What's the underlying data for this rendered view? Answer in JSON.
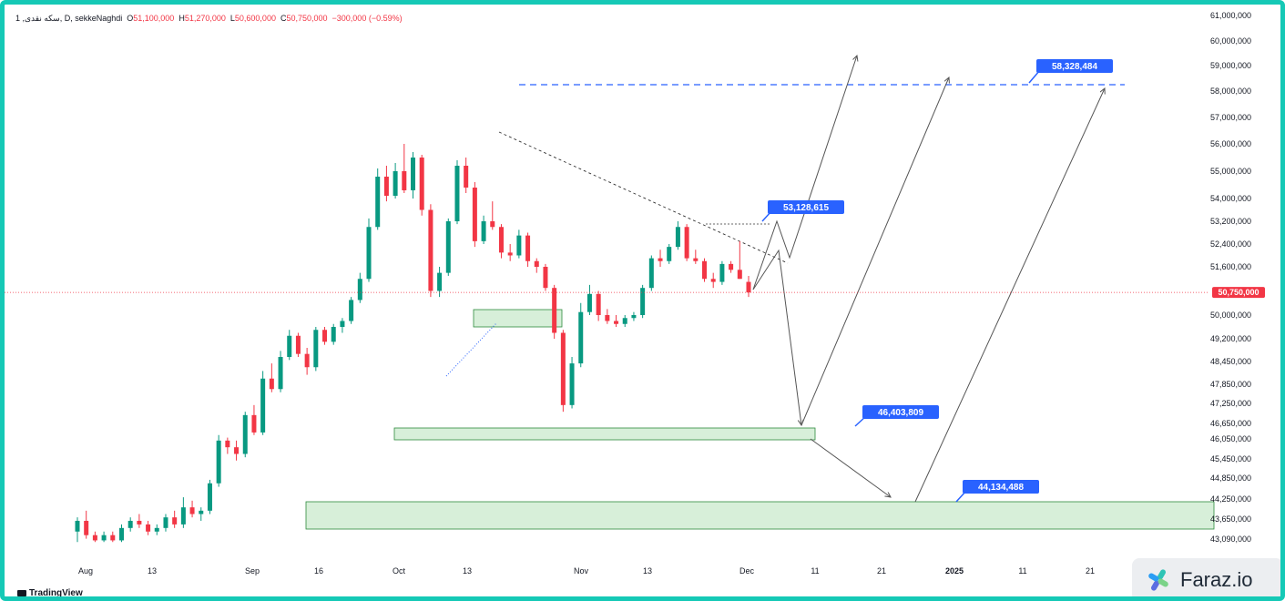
{
  "header": {
    "symbol": "1 ,سکه نقدی, D, sekkeNaghdi",
    "o_label": "O",
    "o": "51,100,000",
    "h_label": "H",
    "h": "51,270,000",
    "l_label": "L",
    "l": "50,600,000",
    "c_label": "C",
    "c": "50,750,000",
    "change": "−300,000 (−0.59%)"
  },
  "branding": {
    "tradingview": "TradingView",
    "faraz": "Faraz.io"
  },
  "colors": {
    "up": "#089981",
    "down": "#f23645",
    "label_bg": "#2962ff",
    "zone_fill": "#d7efd9",
    "zone_stroke": "#2e8b3d",
    "frame": "#15c9b6"
  },
  "chart_data": {
    "type": "candlestick",
    "y_ticks": [
      "61,000,000",
      "60,000,000",
      "59,000,000",
      "58,000,000",
      "57,000,000",
      "56,000,000",
      "55,000,000",
      "54,000,000",
      "53,200,000",
      "52,400,000",
      "51,600,000",
      "50,000,000",
      "49,200,000",
      "48,450,000",
      "47,850,000",
      "47,250,000",
      "46,650,000",
      "46,050,000",
      "45,450,000",
      "44,850,000",
      "44,250,000",
      "43,650,000",
      "43,090,000"
    ],
    "x_ticks": [
      "Aug",
      "13",
      "Sep",
      "16",
      "Oct",
      "13",
      "Nov",
      "13",
      "Dec",
      "11",
      "21",
      "2025",
      "11",
      "21"
    ],
    "last_price": "50,750,000",
    "price_labels": [
      "58,328,484",
      "53,128,615",
      "46,403,809",
      "44,134,488"
    ],
    "ohlc_approx": [
      [
        43.3,
        43.7,
        43.0,
        43.6
      ],
      [
        43.6,
        43.9,
        43.1,
        43.2
      ],
      [
        43.2,
        43.3,
        43.0,
        43.05
      ],
      [
        43.05,
        43.3,
        43.0,
        43.2
      ],
      [
        43.2,
        43.3,
        43.0,
        43.05
      ],
      [
        43.05,
        43.5,
        43.0,
        43.4
      ],
      [
        43.4,
        43.7,
        43.3,
        43.6
      ],
      [
        43.6,
        43.8,
        43.4,
        43.5
      ],
      [
        43.5,
        43.6,
        43.2,
        43.3
      ],
      [
        43.3,
        43.5,
        43.2,
        43.4
      ],
      [
        43.4,
        43.8,
        43.3,
        43.7
      ],
      [
        43.7,
        43.9,
        43.4,
        43.5
      ],
      [
        43.5,
        44.3,
        43.4,
        44.0
      ],
      [
        44.0,
        44.2,
        43.7,
        43.8
      ],
      [
        43.8,
        44.0,
        43.6,
        43.9
      ],
      [
        43.9,
        44.8,
        43.8,
        44.7
      ],
      [
        44.7,
        46.2,
        44.6,
        46.0
      ],
      [
        46.0,
        46.1,
        45.6,
        45.8
      ],
      [
        45.8,
        46.0,
        45.4,
        45.6
      ],
      [
        45.6,
        47.0,
        45.5,
        46.9
      ],
      [
        46.9,
        47.2,
        46.2,
        46.3
      ],
      [
        46.3,
        48.2,
        46.2,
        48.0
      ],
      [
        48.0,
        48.4,
        47.6,
        47.7
      ],
      [
        47.7,
        48.8,
        47.6,
        48.6
      ],
      [
        48.6,
        49.5,
        48.5,
        49.3
      ],
      [
        49.3,
        49.4,
        48.6,
        48.7
      ],
      [
        48.7,
        48.9,
        48.1,
        48.3
      ],
      [
        48.3,
        49.6,
        48.2,
        49.5
      ],
      [
        49.5,
        49.6,
        49.0,
        49.1
      ],
      [
        49.1,
        49.7,
        49.0,
        49.6
      ],
      [
        49.6,
        49.9,
        49.4,
        49.8
      ],
      [
        49.8,
        50.6,
        49.7,
        50.5
      ],
      [
        50.5,
        51.4,
        50.4,
        51.2
      ],
      [
        51.2,
        53.3,
        51.1,
        53.0
      ],
      [
        53.0,
        55.1,
        52.9,
        54.8
      ],
      [
        54.8,
        55.2,
        53.9,
        54.1
      ],
      [
        54.1,
        55.3,
        54.0,
        55.0
      ],
      [
        55.0,
        56.0,
        54.2,
        54.3
      ],
      [
        54.3,
        55.7,
        54.0,
        55.5
      ],
      [
        55.5,
        55.6,
        53.4,
        53.6
      ],
      [
        53.6,
        53.8,
        50.6,
        50.8
      ],
      [
        50.8,
        51.6,
        50.6,
        51.4
      ],
      [
        51.4,
        53.3,
        51.3,
        53.2
      ],
      [
        53.2,
        55.4,
        53.1,
        55.2
      ],
      [
        55.2,
        55.5,
        54.2,
        54.4
      ],
      [
        54.4,
        54.6,
        52.3,
        52.5
      ],
      [
        52.5,
        53.4,
        52.4,
        53.2
      ],
      [
        53.2,
        53.9,
        52.9,
        53.0
      ],
      [
        53.0,
        53.1,
        51.9,
        52.1
      ],
      [
        52.1,
        52.4,
        51.8,
        52.0
      ],
      [
        52.0,
        52.9,
        51.9,
        52.7
      ],
      [
        52.7,
        52.8,
        51.6,
        51.8
      ],
      [
        51.8,
        51.9,
        51.4,
        51.6
      ],
      [
        51.6,
        51.7,
        50.8,
        50.9
      ],
      [
        50.9,
        51.0,
        49.2,
        49.4
      ],
      [
        49.4,
        49.5,
        47.0,
        47.2
      ],
      [
        47.2,
        48.6,
        47.1,
        48.4
      ],
      [
        48.4,
        50.4,
        48.3,
        50.1
      ],
      [
        50.1,
        51.0,
        50.0,
        50.7
      ],
      [
        50.7,
        50.8,
        49.8,
        50.0
      ],
      [
        50.0,
        50.2,
        49.7,
        49.8
      ],
      [
        49.8,
        50.0,
        49.6,
        49.7
      ],
      [
        49.7,
        50.0,
        49.6,
        49.9
      ],
      [
        49.9,
        50.1,
        49.8,
        50.0
      ],
      [
        50.0,
        51.0,
        49.9,
        50.9
      ],
      [
        50.9,
        52.0,
        50.8,
        51.9
      ],
      [
        51.9,
        52.2,
        51.6,
        51.8
      ],
      [
        51.8,
        52.4,
        51.7,
        52.3
      ],
      [
        52.3,
        53.2,
        52.2,
        53.0
      ],
      [
        53.0,
        53.1,
        51.8,
        51.9
      ],
      [
        51.9,
        52.2,
        51.7,
        51.8
      ],
      [
        51.8,
        51.9,
        51.1,
        51.2
      ],
      [
        51.2,
        51.4,
        50.9,
        51.1
      ],
      [
        51.1,
        51.8,
        51.0,
        51.7
      ],
      [
        51.7,
        51.8,
        51.4,
        51.5
      ],
      [
        51.5,
        52.5,
        51.2,
        51.2
      ],
      [
        51.1,
        51.3,
        50.6,
        50.75
      ]
    ],
    "ylim": [
      42.8,
      61.2
    ]
  }
}
